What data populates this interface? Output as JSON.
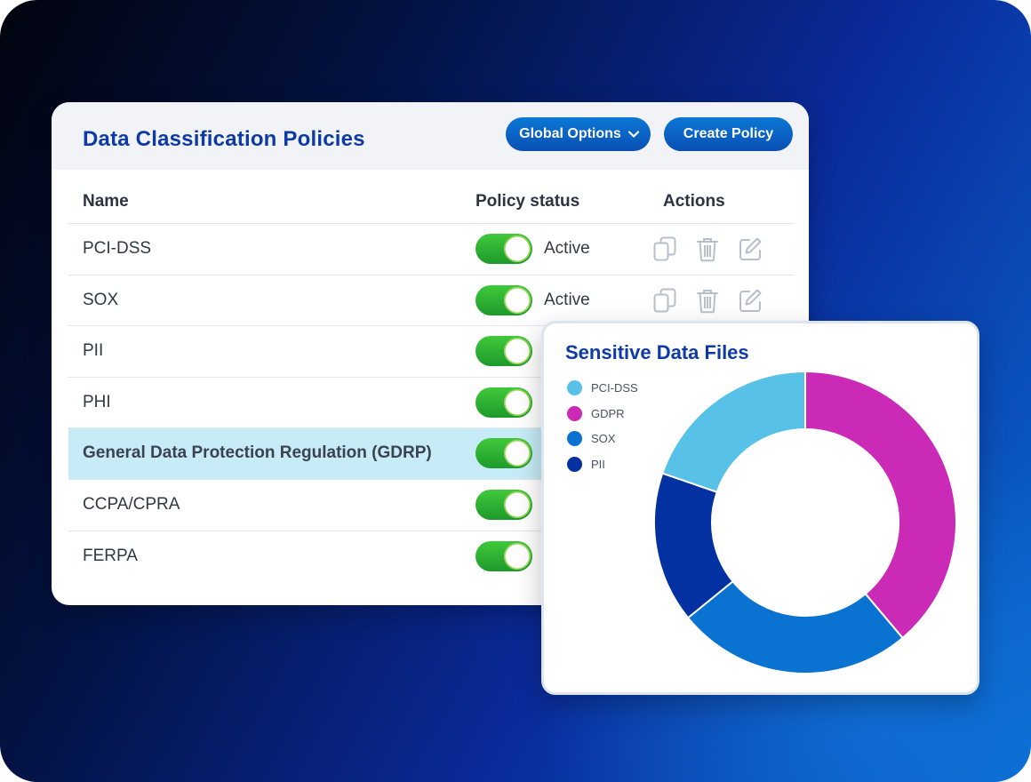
{
  "policies_panel": {
    "title": "Data Classification Policies",
    "global_options_label": "Global Options",
    "create_policy_label": "Create Policy",
    "columns": {
      "name": "Name",
      "status": "Policy status",
      "actions": "Actions"
    },
    "rows": [
      {
        "name": "PCI-DSS",
        "status": "Active",
        "enabled": true,
        "highlighted": false
      },
      {
        "name": "SOX",
        "status": "Active",
        "enabled": true,
        "highlighted": false
      },
      {
        "name": "PII",
        "status": "",
        "enabled": true,
        "highlighted": false
      },
      {
        "name": "PHI",
        "status": "",
        "enabled": true,
        "highlighted": false
      },
      {
        "name": "General Data Protection Regulation (GDRP)",
        "status": "",
        "enabled": true,
        "highlighted": true
      },
      {
        "name": "CCPA/CPRA",
        "status": "",
        "enabled": true,
        "highlighted": false
      },
      {
        "name": "FERPA",
        "status": "",
        "enabled": true,
        "highlighted": false
      }
    ],
    "action_icons": [
      "copy-icon",
      "trash-icon",
      "edit-icon"
    ]
  },
  "chart_card": {
    "title": "Sensitive Data Files"
  },
  "colors": {
    "title_blue": "#0d3aa5",
    "toggle_green": "#2fb533",
    "highlight_row": "#c7ecf7"
  },
  "chart_data": {
    "type": "pie",
    "donut": true,
    "legend": "top-left",
    "series": [
      {
        "name": "PCI-DSS",
        "value": 20.5,
        "color": "#57c1e8"
      },
      {
        "name": "GDPR",
        "value": 40.4,
        "color": "#cb2ab7"
      },
      {
        "name": "SOX",
        "value": 26.3,
        "color": "#0a72d1"
      },
      {
        "name": "PII",
        "value": 16.8,
        "color": "#0431a1"
      }
    ],
    "slice_order_clockwise_from_top": [
      "GDPR",
      "SOX",
      "PII",
      "PCI-DSS"
    ]
  }
}
